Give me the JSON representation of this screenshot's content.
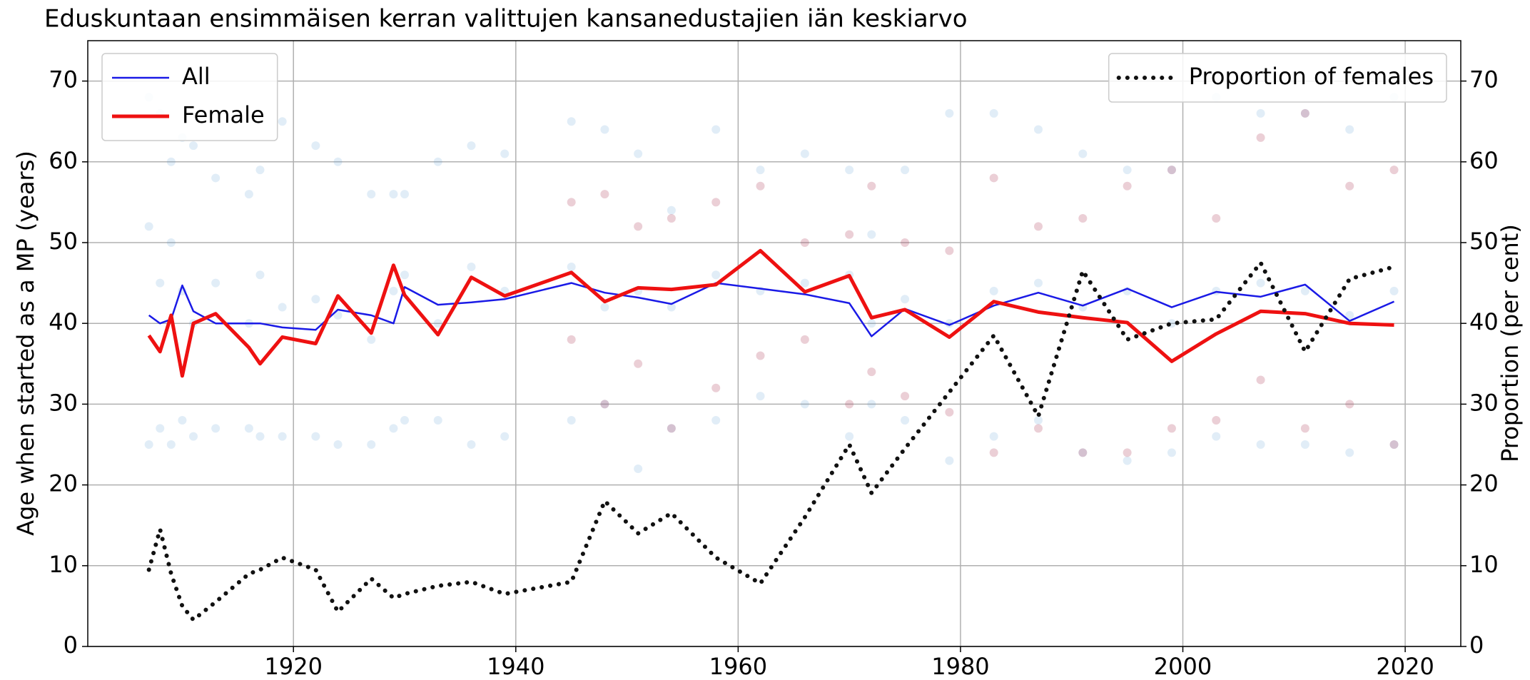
{
  "chart_data": {
    "type": "line",
    "title": "Eduskuntaan ensimmäisen kerran valittujen kansanedustajien iän keskiarvo",
    "ylabel": "Age when started as a MP (years)",
    "y2label": "Proportion (per cent)",
    "xlim": [
      1901.5,
      2025
    ],
    "xticks": [
      1920,
      1940,
      1960,
      1980,
      2000,
      2020
    ],
    "ylim": [
      0,
      75
    ],
    "yticks": [
      0,
      10,
      20,
      30,
      40,
      50,
      60,
      70
    ],
    "y2lim": [
      0,
      75
    ],
    "y2ticks": [
      0,
      10,
      20,
      30,
      40,
      50,
      60,
      70
    ],
    "grid": true,
    "legend_loc": "upper left",
    "legend2_loc": "upper right",
    "x": [
      1907,
      1908,
      1909,
      1910,
      1911,
      1913,
      1916,
      1917,
      1919,
      1922,
      1924,
      1927,
      1929,
      1930,
      1933,
      1936,
      1939,
      1945,
      1948,
      1951,
      1954,
      1958,
      1962,
      1966,
      1970,
      1972,
      1975,
      1979,
      1983,
      1987,
      1991,
      1995,
      1999,
      2003,
      2007,
      2011,
      2015,
      2019
    ],
    "series": [
      {
        "type": "scatter",
        "color": "#5b9bd5",
        "opacity": 0.18,
        "values": [
          [
            25,
            52,
            68
          ],
          [
            27,
            45,
            66
          ],
          [
            25,
            50,
            60
          ],
          [
            28,
            44,
            63
          ],
          [
            26,
            40,
            62
          ],
          [
            27,
            45,
            58
          ],
          [
            27,
            40,
            56
          ],
          [
            26,
            46,
            59
          ],
          [
            26,
            42,
            65
          ],
          [
            26,
            43,
            62
          ],
          [
            25,
            41,
            60
          ],
          [
            25,
            38,
            56
          ],
          [
            27,
            44,
            56
          ],
          [
            28,
            46,
            56
          ],
          [
            28,
            40,
            60
          ],
          [
            25,
            47,
            62
          ],
          [
            26,
            44,
            61
          ],
          [
            28,
            47,
            65
          ],
          [
            30,
            42,
            64
          ],
          [
            22,
            44,
            61
          ],
          [
            27,
            42,
            54
          ],
          [
            28,
            46,
            64
          ],
          [
            31,
            44,
            59
          ],
          [
            30,
            45,
            61
          ],
          [
            26,
            46,
            59
          ],
          [
            30,
            40,
            51
          ],
          [
            28,
            43,
            59
          ],
          [
            23,
            40,
            66
          ],
          [
            26,
            44,
            66
          ],
          [
            28,
            45,
            64
          ],
          [
            24,
            42,
            61
          ],
          [
            23,
            44,
            59
          ],
          [
            24,
            40,
            59
          ],
          [
            26,
            44,
            68
          ],
          [
            25,
            45,
            66
          ],
          [
            25,
            44,
            66
          ],
          [
            24,
            41,
            64
          ],
          [
            25,
            44,
            68
          ]
        ]
      },
      {
        "type": "scatter",
        "color": "#b0405a",
        "opacity": 0.25,
        "x": [
          1945,
          1948,
          1951,
          1954,
          1958,
          1962,
          1966,
          1970,
          1972,
          1975,
          1979,
          1983,
          1987,
          1991,
          1995,
          1999,
          2003,
          2007,
          2011,
          2015,
          2019
        ],
        "values": [
          [
            38,
            55
          ],
          [
            30,
            56
          ],
          [
            35,
            52
          ],
          [
            27,
            53
          ],
          [
            32,
            55
          ],
          [
            36,
            57
          ],
          [
            38,
            50
          ],
          [
            30,
            51
          ],
          [
            34,
            57
          ],
          [
            31,
            50
          ],
          [
            29,
            49
          ],
          [
            24,
            58
          ],
          [
            27,
            52
          ],
          [
            24,
            53
          ],
          [
            24,
            57
          ],
          [
            27,
            59
          ],
          [
            28,
            53
          ],
          [
            33,
            63
          ],
          [
            27,
            66
          ],
          [
            30,
            57
          ],
          [
            25,
            59
          ]
        ]
      },
      {
        "name": "All",
        "color": "#1a1ae6",
        "linewidth": 2.5,
        "values": [
          41,
          40,
          40.5,
          44.7,
          41.5,
          40,
          40,
          40,
          39.5,
          39.2,
          41.7,
          41,
          40,
          44.5,
          42.3,
          42.6,
          43,
          45,
          43.8,
          43.2,
          42.4,
          45,
          44.3,
          43.6,
          42.5,
          38.4,
          41.8,
          39.8,
          42.2,
          43.8,
          42.2,
          44.3,
          42,
          43.9,
          43.3,
          44.8,
          40.3,
          42.7
        ]
      },
      {
        "name": "Female",
        "color": "#ee1111",
        "linewidth": 5,
        "values": [
          38.5,
          36.5,
          41,
          33.5,
          40,
          41.2,
          37,
          35,
          38.3,
          37.5,
          43.4,
          38.8,
          47.2,
          43.5,
          38.6,
          45.7,
          43.4,
          46.3,
          42.7,
          44.4,
          44.2,
          44.8,
          49,
          43.9,
          45.9,
          40.7,
          41.7,
          38.3,
          42.7,
          41.4,
          40.7,
          40.1,
          35.3,
          38.7,
          41.5,
          41.2,
          40,
          39.8
        ]
      },
      {
        "name": "Proportion of females",
        "color": "#111111",
        "linewidth": 6,
        "dash": "dotted",
        "axis": "y2",
        "values": [
          9.5,
          14.5,
          9,
          5,
          3.3,
          5.5,
          9,
          9.5,
          11,
          9.5,
          4.3,
          8.4,
          6,
          6.5,
          7.5,
          8,
          6.5,
          8,
          18,
          14,
          16.5,
          11,
          7.8,
          16,
          25,
          19,
          24.5,
          31.5,
          38.5,
          28.5,
          46.5,
          38,
          40,
          40.5,
          47.5,
          36.5,
          45.5,
          47
        ]
      }
    ]
  }
}
